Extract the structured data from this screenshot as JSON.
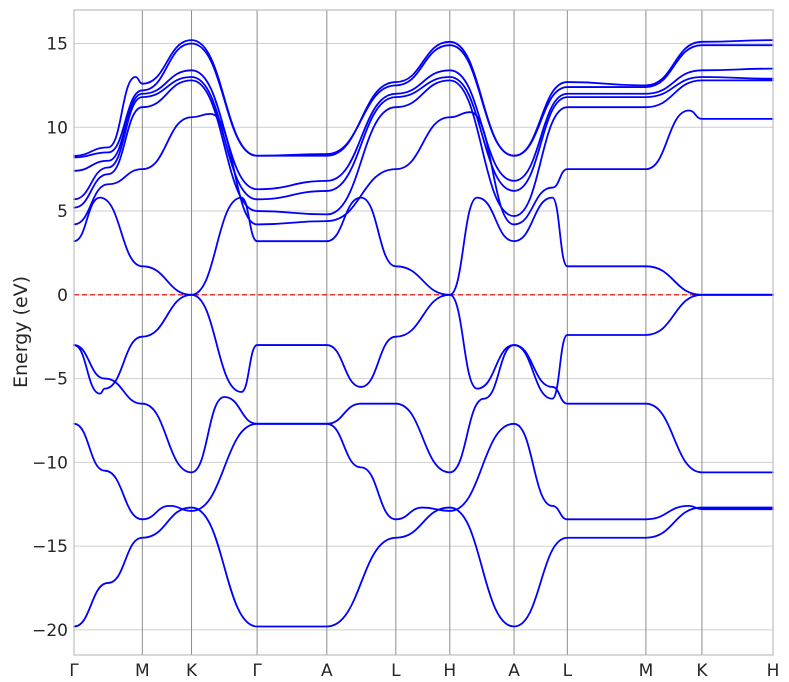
{
  "chart_data": {
    "type": "line",
    "ylabel": "Energy (eV)",
    "ylim": [
      -21.5,
      17
    ],
    "y_ticks": [
      {
        "value": 15,
        "label": "15"
      },
      {
        "value": 10,
        "label": "10"
      },
      {
        "value": 5,
        "label": "5"
      },
      {
        "value": 0,
        "label": "0"
      },
      {
        "value": -5,
        "label": "−5"
      },
      {
        "value": -10,
        "label": "−10"
      },
      {
        "value": -15,
        "label": "−15"
      },
      {
        "value": -20,
        "label": "−20"
      }
    ],
    "kpath": {
      "labels": [
        "Γ",
        "M",
        "K",
        "Γ",
        "A",
        "L",
        "H",
        "A",
        "L",
        "M",
        "K",
        "H"
      ],
      "positions": [
        0,
        1,
        1.72,
        2.68,
        3.7,
        4.71,
        5.5,
        6.44,
        7.22,
        8.37,
        9.19,
        10.23
      ]
    },
    "grid": true,
    "fermi_level": {
      "energy": 0,
      "style": "dashed",
      "color": "#e00000"
    },
    "band_color": "#0000ff",
    "bands": [
      {
        "k": [
          0,
          0.5,
          1,
          1.72,
          2.68,
          3.7,
          4.71,
          5.5,
          6.44,
          7.22,
          8.37,
          9.19,
          10.23
        ],
        "e": [
          -19.8,
          -17.2,
          -14.5,
          -12.7,
          -19.8,
          -19.8,
          -14.5,
          -12.7,
          -19.8,
          -14.5,
          -14.5,
          -12.7,
          -12.7
        ]
      },
      {
        "k": [
          0,
          0.45,
          1,
          1.4,
          1.72,
          2.68,
          3.7,
          4.2,
          4.71,
          5.1,
          5.5,
          6.44,
          7.0,
          7.22,
          8.37,
          9.0,
          9.19,
          10.23
        ],
        "e": [
          -7.7,
          -10.5,
          -13.4,
          -12.6,
          -12.9,
          -7.7,
          -7.7,
          -10.3,
          -13.4,
          -12.7,
          -12.9,
          -7.7,
          -12.6,
          -13.4,
          -13.4,
          -12.6,
          -12.8,
          -12.8
        ]
      },
      {
        "k": [
          0,
          0.45,
          1,
          1.72,
          2.2,
          2.68,
          3.7,
          4.2,
          4.71,
          5.5,
          6.0,
          6.44,
          7.0,
          7.22,
          8.37,
          9.19,
          10.23
        ],
        "e": [
          -3.0,
          -5.0,
          -6.5,
          -10.6,
          -6.1,
          -7.7,
          -7.7,
          -6.5,
          -6.5,
          -10.6,
          -6.2,
          -3.0,
          -5.5,
          -6.5,
          -6.5,
          -10.6,
          -10.6
        ]
      },
      {
        "k": [
          0,
          0.38,
          0.45,
          1,
          1.72,
          2.45,
          2.68,
          3.7,
          4.2,
          4.71,
          5.5,
          5.9,
          6.44,
          7.0,
          7.22,
          8.37,
          9.19,
          10.23
        ],
        "e": [
          -3.0,
          -5.9,
          -5.6,
          -2.5,
          0,
          -5.8,
          -3.0,
          -3.0,
          -5.5,
          -2.5,
          0,
          -5.6,
          -3.0,
          -6.2,
          -2.4,
          -2.4,
          0,
          0
        ]
      },
      {
        "k": [
          0,
          0.38,
          1,
          1.72,
          2.45,
          2.68,
          3.7,
          4.2,
          4.71,
          5.5,
          5.9,
          6.44,
          7.0,
          7.22,
          8.37,
          9.19,
          10.23
        ],
        "e": [
          3.2,
          5.8,
          1.7,
          0,
          5.8,
          3.2,
          3.2,
          5.8,
          1.7,
          0,
          5.8,
          3.2,
          5.8,
          1.7,
          1.7,
          0,
          0
        ]
      },
      {
        "k": [
          0,
          0.5,
          1,
          1.72,
          2.0,
          2.68,
          3.7,
          4.71,
          5.5,
          5.8,
          6.44,
          7.0,
          7.22,
          8.37,
          9.0,
          9.19,
          10.23
        ],
        "e": [
          4.2,
          6.6,
          7.5,
          10.6,
          10.8,
          4.2,
          4.4,
          7.5,
          10.6,
          10.9,
          4.2,
          6.4,
          7.5,
          7.5,
          11.0,
          10.5,
          10.5
        ]
      },
      {
        "k": [
          0,
          0.5,
          1,
          1.72,
          2.68,
          3.7,
          4.71,
          5.5,
          6.44,
          7.22,
          8.37,
          9.19,
          10.23
        ],
        "e": [
          5.2,
          7.2,
          11.2,
          12.8,
          5.0,
          4.8,
          11.2,
          12.8,
          4.7,
          11.2,
          11.2,
          12.8,
          12.8
        ]
      },
      {
        "k": [
          0,
          0.5,
          1,
          1.72,
          2.68,
          3.7,
          4.71,
          5.5,
          6.44,
          7.22,
          8.37,
          9.19,
          10.23
        ],
        "e": [
          5.7,
          7.6,
          11.8,
          13.0,
          5.7,
          6.2,
          11.8,
          13.0,
          6.2,
          11.8,
          11.8,
          13.0,
          12.9
        ]
      },
      {
        "k": [
          0,
          0.5,
          1,
          1.72,
          2.68,
          3.7,
          4.71,
          5.5,
          6.44,
          7.22,
          8.37,
          9.19,
          10.23
        ],
        "e": [
          7.4,
          8.0,
          12.0,
          13.4,
          6.3,
          6.8,
          12.0,
          13.4,
          6.8,
          12.0,
          12.0,
          13.4,
          13.5
        ]
      },
      {
        "k": [
          0,
          0.5,
          0.9,
          1,
          1.72,
          2.68,
          3.7,
          4.71,
          5.5,
          6.44,
          7.22,
          8.37,
          9.19,
          10.23
        ],
        "e": [
          8.3,
          8.8,
          13.0,
          12.6,
          15.2,
          8.3,
          8.3,
          12.7,
          15.1,
          8.3,
          12.7,
          12.5,
          15.1,
          15.2
        ]
      },
      {
        "k": [
          0,
          0.5,
          1,
          1.72,
          2.68,
          3.7,
          4.71,
          5.5,
          6.44,
          7.22,
          8.37,
          9.19,
          10.23
        ],
        "e": [
          8.2,
          8.5,
          12.2,
          15.0,
          8.3,
          8.4,
          12.5,
          14.9,
          8.3,
          12.4,
          12.4,
          14.9,
          14.9
        ]
      }
    ]
  }
}
